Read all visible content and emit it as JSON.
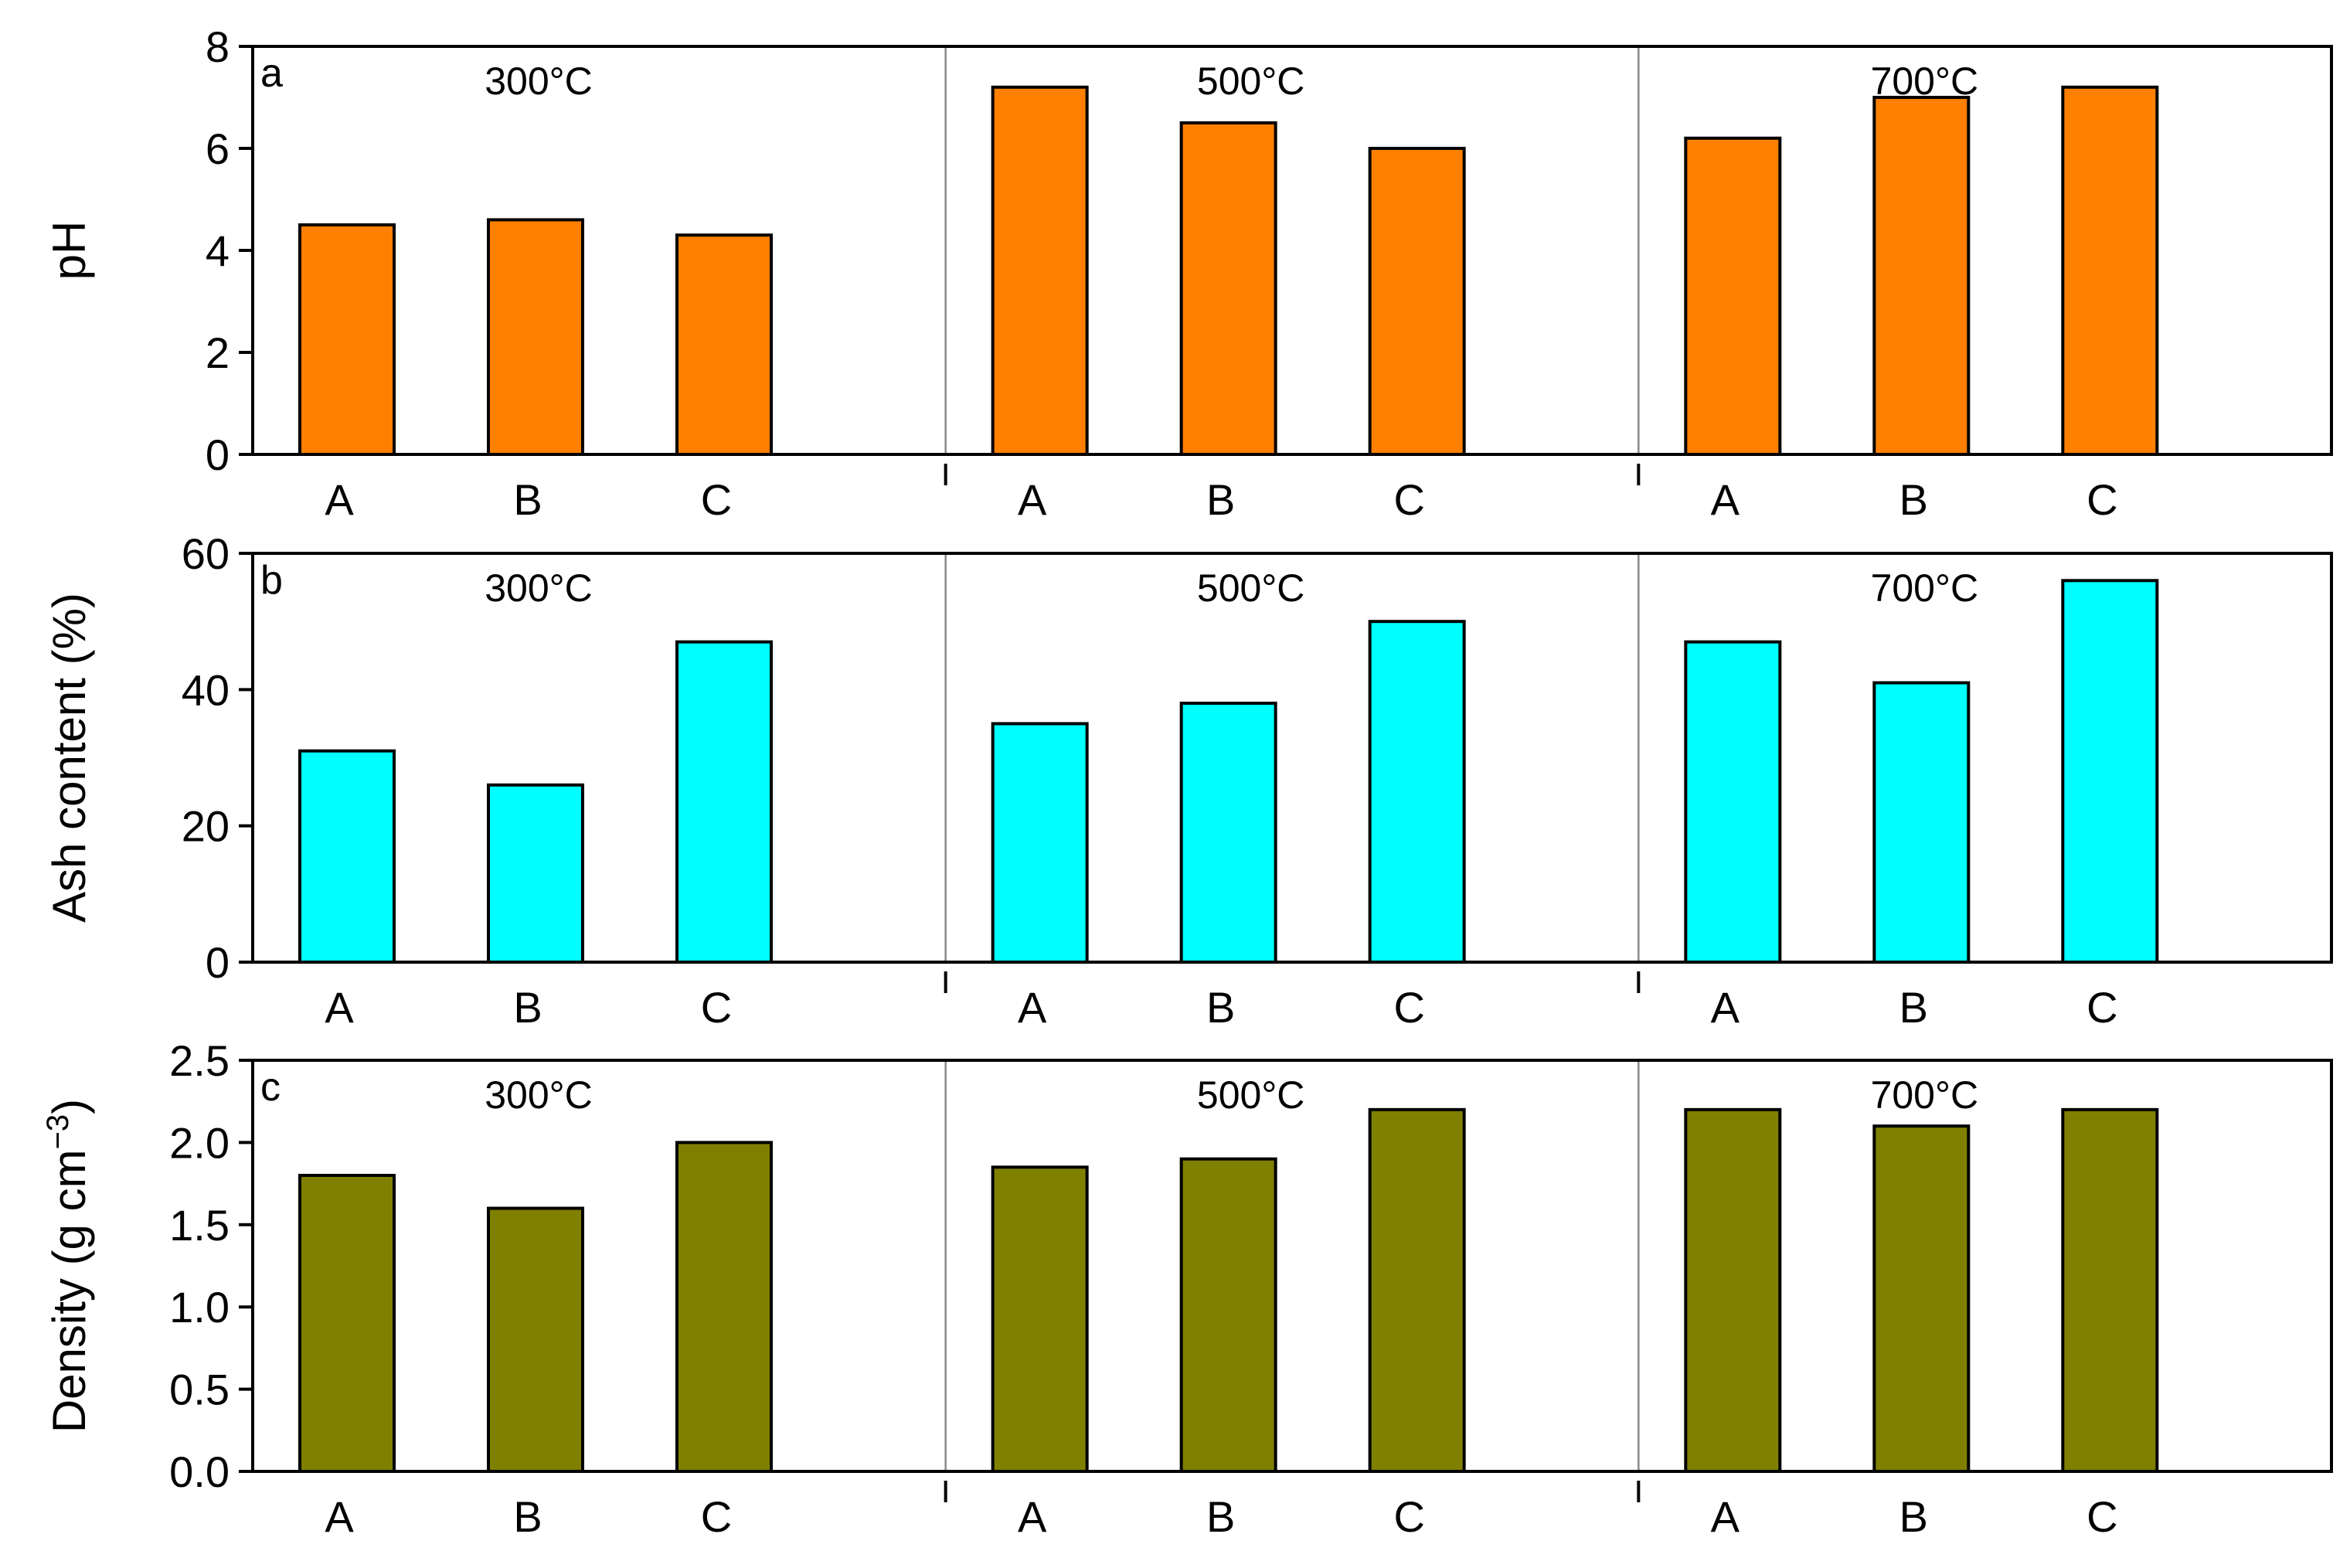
{
  "chart_data": [
    {
      "type": "bar",
      "panel_label": "a",
      "ylabel": "pH",
      "xlabel": "",
      "ylim": [
        0,
        8
      ],
      "yticks": [
        "0",
        "2",
        "4",
        "6",
        "8"
      ],
      "bar_color": "#ff8000",
      "groups": [
        {
          "temperature": "300°C",
          "categories": [
            "A",
            "B",
            "C"
          ],
          "values": [
            4.5,
            4.6,
            4.3
          ]
        },
        {
          "temperature": "500°C",
          "categories": [
            "A",
            "B",
            "C"
          ],
          "values": [
            7.2,
            6.5,
            6.0
          ]
        },
        {
          "temperature": "700°C",
          "categories": [
            "A",
            "B",
            "C"
          ],
          "values": [
            6.2,
            7.0,
            7.2
          ]
        }
      ]
    },
    {
      "type": "bar",
      "panel_label": "b",
      "ylabel": "Ash content (%)",
      "xlabel": "",
      "ylim": [
        0,
        60
      ],
      "yticks": [
        "0",
        "20",
        "40",
        "60"
      ],
      "bar_color": "#00ffff",
      "groups": [
        {
          "temperature": "300°C",
          "categories": [
            "A",
            "B",
            "C"
          ],
          "values": [
            31,
            26,
            47
          ]
        },
        {
          "temperature": "500°C",
          "categories": [
            "A",
            "B",
            "C"
          ],
          "values": [
            35,
            38,
            50
          ]
        },
        {
          "temperature": "700°C",
          "categories": [
            "A",
            "B",
            "C"
          ],
          "values": [
            47,
            41,
            56
          ]
        }
      ]
    },
    {
      "type": "bar",
      "panel_label": "c",
      "ylabel": "Density (g cm",
      "ylabel_sup": "−3",
      "ylabel_end": ")",
      "xlabel": "",
      "ylim": [
        0,
        2.5
      ],
      "yticks": [
        "0.0",
        "0.5",
        "1.0",
        "1.5",
        "2.0",
        "2.5"
      ],
      "bar_color": "#808000",
      "groups": [
        {
          "temperature": "300°C",
          "categories": [
            "A",
            "B",
            "C"
          ],
          "values": [
            1.8,
            1.6,
            2.0
          ]
        },
        {
          "temperature": "500°C",
          "categories": [
            "A",
            "B",
            "C"
          ],
          "values": [
            1.85,
            1.9,
            2.2
          ]
        },
        {
          "temperature": "700°C",
          "categories": [
            "A",
            "B",
            "C"
          ],
          "values": [
            2.2,
            2.1,
            2.2
          ]
        }
      ]
    }
  ]
}
